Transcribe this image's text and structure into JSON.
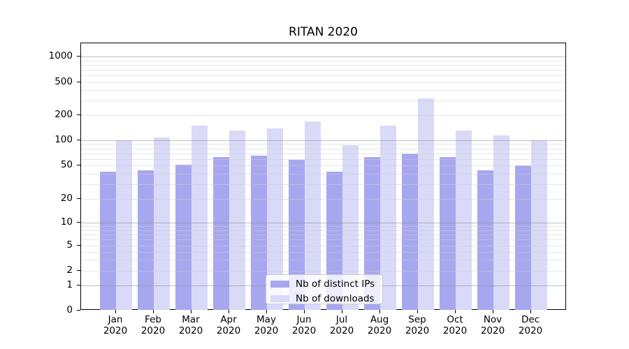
{
  "chart_data": {
    "type": "bar",
    "title": "RITAN 2020",
    "categories": [
      "Jan\n2020",
      "Feb\n2020",
      "Mar\n2020",
      "Apr\n2020",
      "May\n2020",
      "Jun\n2020",
      "Jul\n2020",
      "Aug\n2020",
      "Sep\n2020",
      "Oct\n2020",
      "Nov\n2020",
      "Dec\n2020"
    ],
    "series": [
      {
        "name": "Nb of distinct IPs",
        "color": "#a7a7f0",
        "values": [
          42,
          44,
          51,
          63,
          65,
          58,
          42,
          63,
          69,
          63,
          44,
          50
        ]
      },
      {
        "name": "Nb of downloads",
        "color": "#d9d9f8",
        "values": [
          100,
          107,
          150,
          132,
          140,
          169,
          88,
          150,
          320,
          131,
          114,
          100
        ]
      }
    ],
    "xlabel": "",
    "ylabel": "",
    "y_axis": {
      "scale": "symlog",
      "tick_labels": [
        "0",
        "1",
        "2",
        "5",
        "10",
        "20",
        "50",
        "100",
        "200",
        "500",
        "1000"
      ],
      "ylim": [
        0,
        1500
      ],
      "grid": true
    },
    "legend": {
      "position": "lower center",
      "entries": [
        "Nb of distinct IPs",
        "Nb of downloads"
      ]
    }
  }
}
